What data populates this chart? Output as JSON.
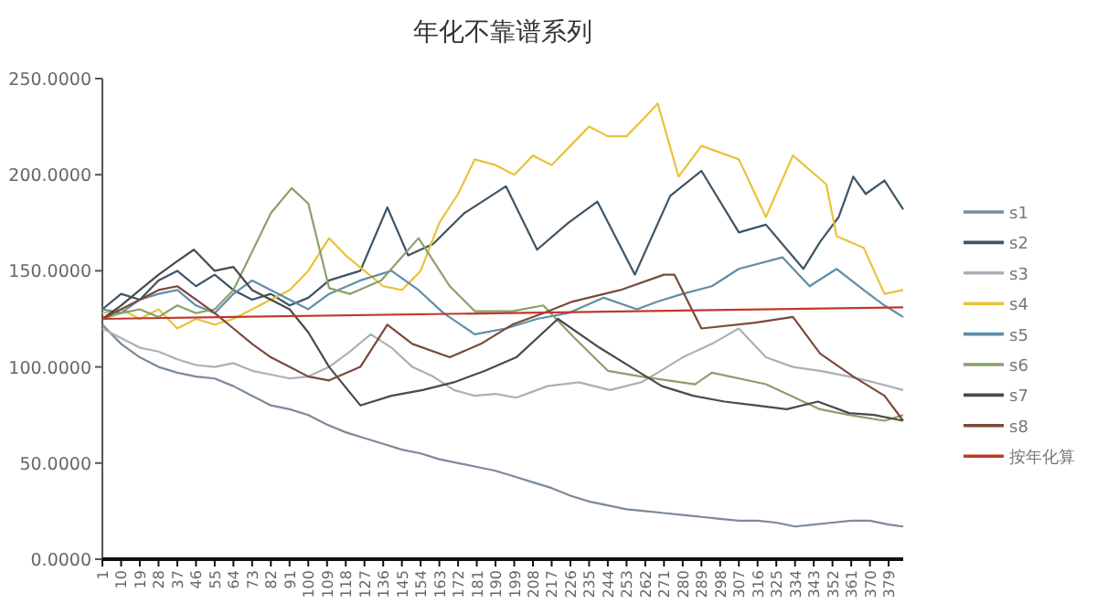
{
  "chart_data": {
    "type": "line",
    "title": "年化不靠谱系列",
    "xlim": [
      1,
      386
    ],
    "xticks": [
      1,
      10,
      19,
      28,
      37,
      46,
      55,
      64,
      73,
      82,
      91,
      100,
      109,
      118,
      127,
      136,
      145,
      154,
      163,
      172,
      181,
      190,
      199,
      208,
      217,
      226,
      235,
      244,
      253,
      262,
      271,
      280,
      289,
      298,
      307,
      316,
      325,
      334,
      343,
      352,
      361,
      370,
      379
    ],
    "ylim": [
      0,
      250
    ],
    "yticks": [
      {
        "value": 0,
        "label": "0.0000"
      },
      {
        "value": 50,
        "label": "50.0000"
      },
      {
        "value": 100,
        "label": "100.0000"
      },
      {
        "value": 150,
        "label": "150.0000"
      },
      {
        "value": 200,
        "label": "200.0000"
      },
      {
        "value": 250,
        "label": "250.0000"
      }
    ],
    "legend": "right",
    "series": [
      {
        "name": "s1",
        "color": "#7b8a9a",
        "x": [
          1,
          10,
          19,
          28,
          37,
          46,
          55,
          64,
          73,
          82,
          91,
          100,
          109,
          118,
          127,
          136,
          145,
          154,
          163,
          172,
          181,
          190,
          199,
          208,
          217,
          226,
          235,
          244,
          253,
          262,
          271,
          280,
          289,
          298,
          307,
          316,
          325,
          334,
          343,
          352,
          361,
          370,
          379,
          386
        ],
        "values": [
          122,
          112,
          105,
          100,
          97,
          95,
          94,
          90,
          85,
          80,
          78,
          75,
          70,
          66,
          63,
          60,
          57,
          55,
          52,
          50,
          48,
          46,
          43,
          40,
          37,
          33,
          30,
          28,
          26,
          25,
          24,
          23,
          22,
          21,
          20,
          20,
          19,
          17,
          18,
          19,
          20,
          20,
          18,
          17
        ]
      },
      {
        "name": "s2",
        "color": "#3d5566",
        "x": [
          1,
          10,
          19,
          28,
          37,
          46,
          55,
          64,
          73,
          82,
          91,
          100,
          110,
          125,
          138,
          148,
          160,
          175,
          195,
          210,
          225,
          239,
          257,
          274,
          289,
          307,
          320,
          338,
          346,
          355,
          362,
          368,
          377,
          386
        ],
        "values": [
          130,
          138,
          135,
          145,
          150,
          142,
          148,
          140,
          135,
          138,
          132,
          136,
          145,
          150,
          183,
          158,
          164,
          180,
          194,
          161,
          175,
          186,
          148,
          189,
          202,
          170,
          174,
          151,
          165,
          178,
          199,
          190,
          197,
          182
        ]
      },
      {
        "name": "s3",
        "color": "#aab0b8",
        "x": [
          1,
          10,
          19,
          28,
          37,
          46,
          55,
          64,
          73,
          82,
          91,
          100,
          110,
          120,
          130,
          140,
          150,
          160,
          170,
          180,
          190,
          200,
          215,
          230,
          245,
          260,
          268,
          280,
          294,
          307,
          320,
          333,
          346,
          360,
          372,
          386
        ],
        "values": [
          120,
          115,
          110,
          108,
          104,
          101,
          100,
          102,
          98,
          96,
          94,
          95,
          100,
          108,
          117,
          110,
          100,
          95,
          88,
          85,
          86,
          84,
          90,
          92,
          88,
          92,
          97,
          105,
          112,
          120,
          105,
          100,
          98,
          95,
          92,
          88
        ]
      },
      {
        "name": "s4",
        "color": "#e8c33a",
        "x": [
          1,
          10,
          19,
          28,
          37,
          46,
          55,
          64,
          73,
          82,
          91,
          100,
          110,
          118,
          127,
          136,
          145,
          154,
          163,
          172,
          180,
          190,
          199,
          208,
          217,
          226,
          235,
          244,
          253,
          262,
          268,
          278,
          289,
          307,
          320,
          333,
          349,
          354,
          367,
          377,
          386
        ],
        "values": [
          128,
          130,
          125,
          130,
          120,
          125,
          122,
          125,
          130,
          135,
          140,
          150,
          167,
          158,
          150,
          142,
          140,
          150,
          175,
          190,
          208,
          205,
          200,
          210,
          205,
          215,
          225,
          220,
          220,
          230,
          237,
          199,
          215,
          208,
          178,
          210,
          195,
          168,
          162,
          138,
          140
        ]
      },
      {
        "name": "s5",
        "color": "#5f8ea8",
        "x": [
          1,
          10,
          19,
          28,
          37,
          46,
          55,
          64,
          73,
          82,
          91,
          100,
          110,
          125,
          140,
          153,
          165,
          180,
          195,
          210,
          225,
          242,
          258,
          268,
          280,
          294,
          307,
          328,
          341,
          354,
          367,
          377,
          386
        ],
        "values": [
          130,
          128,
          135,
          138,
          140,
          132,
          128,
          138,
          145,
          140,
          135,
          130,
          138,
          145,
          150,
          140,
          128,
          117,
          120,
          125,
          128,
          136,
          130,
          134,
          138,
          142,
          151,
          157,
          142,
          151,
          140,
          132,
          126
        ]
      },
      {
        "name": "s6",
        "color": "#8aa06a",
        "x": [
          1,
          10,
          19,
          28,
          37,
          46,
          55,
          64,
          73,
          82,
          92,
          100,
          110,
          120,
          135,
          153,
          168,
          180,
          198,
          213,
          228,
          244,
          260,
          286,
          294,
          320,
          346,
          360,
          377,
          386
        ],
        "values": [
          125,
          128,
          130,
          126,
          132,
          128,
          130,
          140,
          160,
          180,
          193,
          185,
          141,
          138,
          145,
          167,
          142,
          129,
          129,
          132,
          115,
          98,
          95,
          91,
          97,
          91,
          78,
          75,
          72,
          75
        ]
      },
      {
        "name": "s7",
        "color": "#4a4a4a",
        "x": [
          1,
          10,
          19,
          28,
          37,
          45,
          55,
          64,
          73,
          82,
          91,
          100,
          110,
          125,
          140,
          155,
          170,
          185,
          200,
          220,
          240,
          255,
          270,
          285,
          300,
          315,
          330,
          345,
          360,
          372,
          386
        ],
        "values": [
          125,
          132,
          140,
          148,
          155,
          161,
          150,
          152,
          140,
          135,
          130,
          118,
          100,
          80,
          85,
          88,
          92,
          98,
          105,
          125,
          110,
          100,
          90,
          85,
          82,
          80,
          78,
          82,
          76,
          75,
          72
        ]
      },
      {
        "name": "s8",
        "color": "#7a4a3a",
        "x": [
          1,
          10,
          19,
          28,
          37,
          46,
          55,
          64,
          73,
          82,
          91,
          100,
          110,
          125,
          138,
          150,
          168,
          183,
          198,
          213,
          227,
          250,
          271,
          276,
          289,
          315,
          333,
          346,
          362,
          377,
          386
        ],
        "values": [
          125,
          130,
          135,
          140,
          142,
          135,
          128,
          120,
          112,
          105,
          100,
          95,
          93,
          100,
          122,
          112,
          105,
          112,
          122,
          128,
          134,
          140,
          148,
          148,
          120,
          123,
          126,
          107,
          95,
          85,
          72
        ]
      },
      {
        "name": "按年化算",
        "color": "#c0392b",
        "x": [
          1,
          386
        ],
        "values": [
          125,
          131
        ]
      }
    ]
  }
}
